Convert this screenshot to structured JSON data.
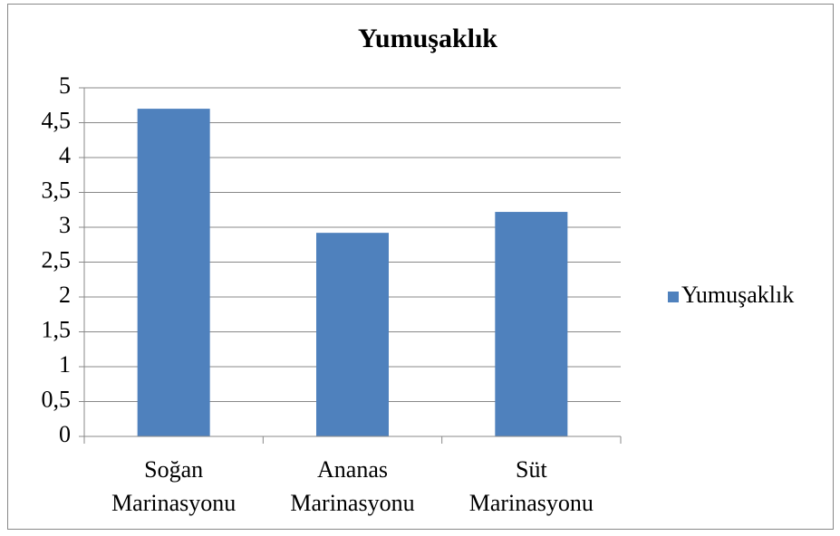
{
  "chart_data": {
    "type": "bar",
    "title": "Yumuşaklık",
    "categories": [
      "Soğan Marinasyonu",
      "Ananas Marinasyonu",
      "Süt Marinasyonu"
    ],
    "series": [
      {
        "name": "Yumuşaklık",
        "color": "#4f81bd",
        "values": [
          4.7,
          2.92,
          3.22
        ]
      }
    ],
    "ylim": [
      0,
      5
    ],
    "yticks": [
      0,
      {
        "value": 0.5,
        "label": "0,5"
      },
      1,
      {
        "value": 1.5,
        "label": "1,5"
      },
      2,
      {
        "value": 2.5,
        "label": "2,5"
      },
      3,
      {
        "value": 3.5,
        "label": "3,5"
      },
      4,
      {
        "value": 4.5,
        "label": "4,5"
      },
      5
    ],
    "grid": true,
    "legend": "right"
  }
}
